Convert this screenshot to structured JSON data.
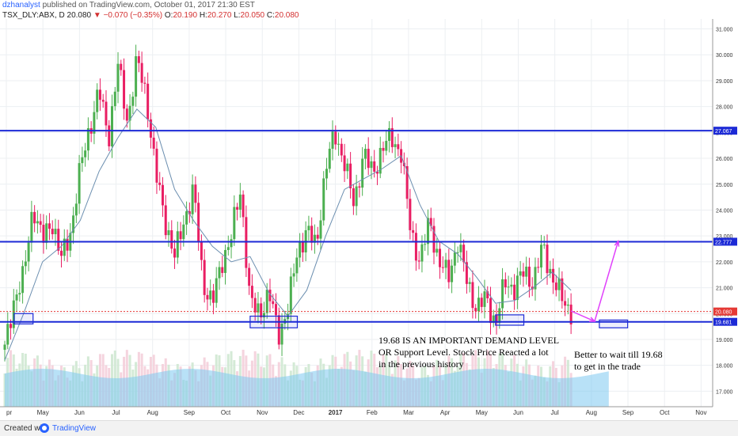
{
  "header": {
    "author": "dzhanalyst",
    "published": "published on TradingView.com, October 01, 2017 21:30 EST",
    "symbol": "TSX_DLY:ABX, D",
    "last": "20.080",
    "change": "▼ −0.070 (−0.35%)",
    "o_label": "O:",
    "o_value": "20.190",
    "h_label": "H:",
    "h_value": "20.270",
    "l_label": "L:",
    "l_value": "20.050",
    "c_label": "C:",
    "c_value": "20.080"
  },
  "annotations": {
    "note1_line1": "19.68 IS AN IMPORTANT DEMAND LEVEL",
    "note1_line2": "OR Support Level. Stock Price Reacted a lot",
    "note1_line3": "in the previous history",
    "note2_line1": "Better to wait till 19.68",
    "note2_line2": "to get in the trade"
  },
  "footer": {
    "created_with": "Created with",
    "brand": "TradingView"
  },
  "colors": {
    "up": "#4caf50",
    "down": "#e91e63",
    "level": "#1c2ad6",
    "ma": "#6c8fb0",
    "volume": "#7ec8f0",
    "arrow": "#e040fb",
    "last_price": "#e53935"
  },
  "chart_data": {
    "type": "candlestick",
    "symbol": "TSX_DLY:ABX",
    "interval": "D",
    "x_tick_labels": [
      "pr",
      "May",
      "Jun",
      "Jul",
      "Aug",
      "Sep",
      "Oct",
      "Nov",
      "Dec",
      "2017",
      "Feb",
      "Mar",
      "Apr",
      "May",
      "Jun",
      "Jul",
      "Aug",
      "Sep",
      "Oct",
      "Nov"
    ],
    "y_ticks": [
      17,
      18,
      19,
      20,
      21,
      22,
      23,
      24,
      25,
      26,
      27,
      28,
      29,
      30,
      31
    ],
    "y_tick_labels": [
      "17.000",
      "18.000",
      "19.000",
      "20.000",
      "21.000",
      "22.000",
      "23.000",
      "24.000",
      "25.000",
      "26.000",
      "27.000",
      "28.000",
      "29.000",
      "30.000",
      "31.000"
    ],
    "ylim": [
      16.4,
      31.2
    ],
    "horizontal_levels": [
      {
        "value": 27.067,
        "label": "27.067"
      },
      {
        "value": 22.777,
        "label": "22.777"
      },
      {
        "value": 19.681,
        "label": "19.681"
      }
    ],
    "last_price": {
      "value": 20.08,
      "label": "20.080"
    },
    "price_series": [
      {
        "t": 0,
        "c": 18.6
      },
      {
        "t": 1,
        "c": 20.6
      },
      {
        "t": 2,
        "c": 21.4
      },
      {
        "t": 3,
        "c": 24.2
      },
      {
        "t": 4,
        "c": 22.8
      },
      {
        "t": 5,
        "c": 23.6
      },
      {
        "t": 6,
        "c": 22.1
      },
      {
        "t": 7,
        "c": 23.2
      },
      {
        "t": 8,
        "c": 25.6
      },
      {
        "t": 9,
        "c": 27.2
      },
      {
        "t": 10,
        "c": 28.6
      },
      {
        "t": 11,
        "c": 26.8
      },
      {
        "t": 12,
        "c": 29.6
      },
      {
        "t": 13,
        "c": 27.4
      },
      {
        "t": 14,
        "c": 29.8
      },
      {
        "t": 15,
        "c": 28.4
      },
      {
        "t": 16,
        "c": 25.4
      },
      {
        "t": 17,
        "c": 23.6
      },
      {
        "t": 18,
        "c": 22.2
      },
      {
        "t": 19,
        "c": 23.6
      },
      {
        "t": 20,
        "c": 24.8
      },
      {
        "t": 21,
        "c": 21.2
      },
      {
        "t": 22,
        "c": 20.4
      },
      {
        "t": 23,
        "c": 22.0
      },
      {
        "t": 24,
        "c": 23.0
      },
      {
        "t": 25,
        "c": 24.8
      },
      {
        "t": 26,
        "c": 20.4
      },
      {
        "t": 27,
        "c": 20.0
      },
      {
        "t": 28,
        "c": 20.8
      },
      {
        "t": 29,
        "c": 19.2
      },
      {
        "t": 30,
        "c": 20.2
      },
      {
        "t": 31,
        "c": 22.4
      },
      {
        "t": 32,
        "c": 23.2
      },
      {
        "t": 33,
        "c": 22.6
      },
      {
        "t": 34,
        "c": 25.6
      },
      {
        "t": 35,
        "c": 27.0
      },
      {
        "t": 36,
        "c": 25.8
      },
      {
        "t": 37,
        "c": 24.2
      },
      {
        "t": 38,
        "c": 26.2
      },
      {
        "t": 39,
        "c": 25.4
      },
      {
        "t": 40,
        "c": 26.4
      },
      {
        "t": 41,
        "c": 26.8
      },
      {
        "t": 42,
        "c": 26.2
      },
      {
        "t": 43,
        "c": 23.2
      },
      {
        "t": 44,
        "c": 22.0
      },
      {
        "t": 45,
        "c": 23.6
      },
      {
        "t": 46,
        "c": 22.0
      },
      {
        "t": 47,
        "c": 21.4
      },
      {
        "t": 48,
        "c": 22.8
      },
      {
        "t": 49,
        "c": 21.2
      },
      {
        "t": 50,
        "c": 20.2
      },
      {
        "t": 51,
        "c": 20.6
      },
      {
        "t": 52,
        "c": 19.6
      },
      {
        "t": 53,
        "c": 21.2
      },
      {
        "t": 54,
        "c": 21.0
      },
      {
        "t": 55,
        "c": 21.6
      },
      {
        "t": 56,
        "c": 21.2
      },
      {
        "t": 57,
        "c": 22.6
      },
      {
        "t": 58,
        "c": 21.4
      },
      {
        "t": 59,
        "c": 20.6
      },
      {
        "t": 60,
        "c": 20.08
      }
    ],
    "moving_average": [
      {
        "t": 0,
        "v": 18.2
      },
      {
        "t": 2,
        "v": 20.0
      },
      {
        "t": 4,
        "v": 22.0
      },
      {
        "t": 6,
        "v": 22.6
      },
      {
        "t": 8,
        "v": 23.6
      },
      {
        "t": 10,
        "v": 25.5
      },
      {
        "t": 12,
        "v": 26.8
      },
      {
        "t": 14,
        "v": 27.9
      },
      {
        "t": 16,
        "v": 27.2
      },
      {
        "t": 18,
        "v": 24.8
      },
      {
        "t": 20,
        "v": 23.6
      },
      {
        "t": 22,
        "v": 22.6
      },
      {
        "t": 24,
        "v": 22.0
      },
      {
        "t": 26,
        "v": 22.2
      },
      {
        "t": 28,
        "v": 20.8
      },
      {
        "t": 30,
        "v": 19.9
      },
      {
        "t": 32,
        "v": 20.9
      },
      {
        "t": 34,
        "v": 23.0
      },
      {
        "t": 36,
        "v": 24.8
      },
      {
        "t": 38,
        "v": 25.2
      },
      {
        "t": 40,
        "v": 25.6
      },
      {
        "t": 42,
        "v": 26.1
      },
      {
        "t": 44,
        "v": 24.2
      },
      {
        "t": 46,
        "v": 22.8
      },
      {
        "t": 48,
        "v": 22.3
      },
      {
        "t": 50,
        "v": 21.4
      },
      {
        "t": 52,
        "v": 20.4
      },
      {
        "t": 54,
        "v": 20.5
      },
      {
        "t": 56,
        "v": 21.0
      },
      {
        "t": 58,
        "v": 21.6
      },
      {
        "t": 60,
        "v": 20.9
      }
    ],
    "support_boxes": [
      {
        "t0": 1,
        "t1": 3,
        "low": 19.6,
        "high": 20.0
      },
      {
        "t0": 26,
        "t1": 31,
        "low": 19.45,
        "high": 19.9
      },
      {
        "t0": 52,
        "t1": 55,
        "low": 19.55,
        "high": 19.95
      },
      {
        "t0": 63,
        "t1": 66,
        "low": 19.45,
        "high": 19.75
      }
    ],
    "projection_arrows": [
      {
        "t0": 60,
        "v0": 20.1,
        "t1": 62.5,
        "v1": 19.7
      },
      {
        "t0": 62.5,
        "v0": 19.7,
        "t1": 65,
        "v1": 22.8
      }
    ]
  }
}
